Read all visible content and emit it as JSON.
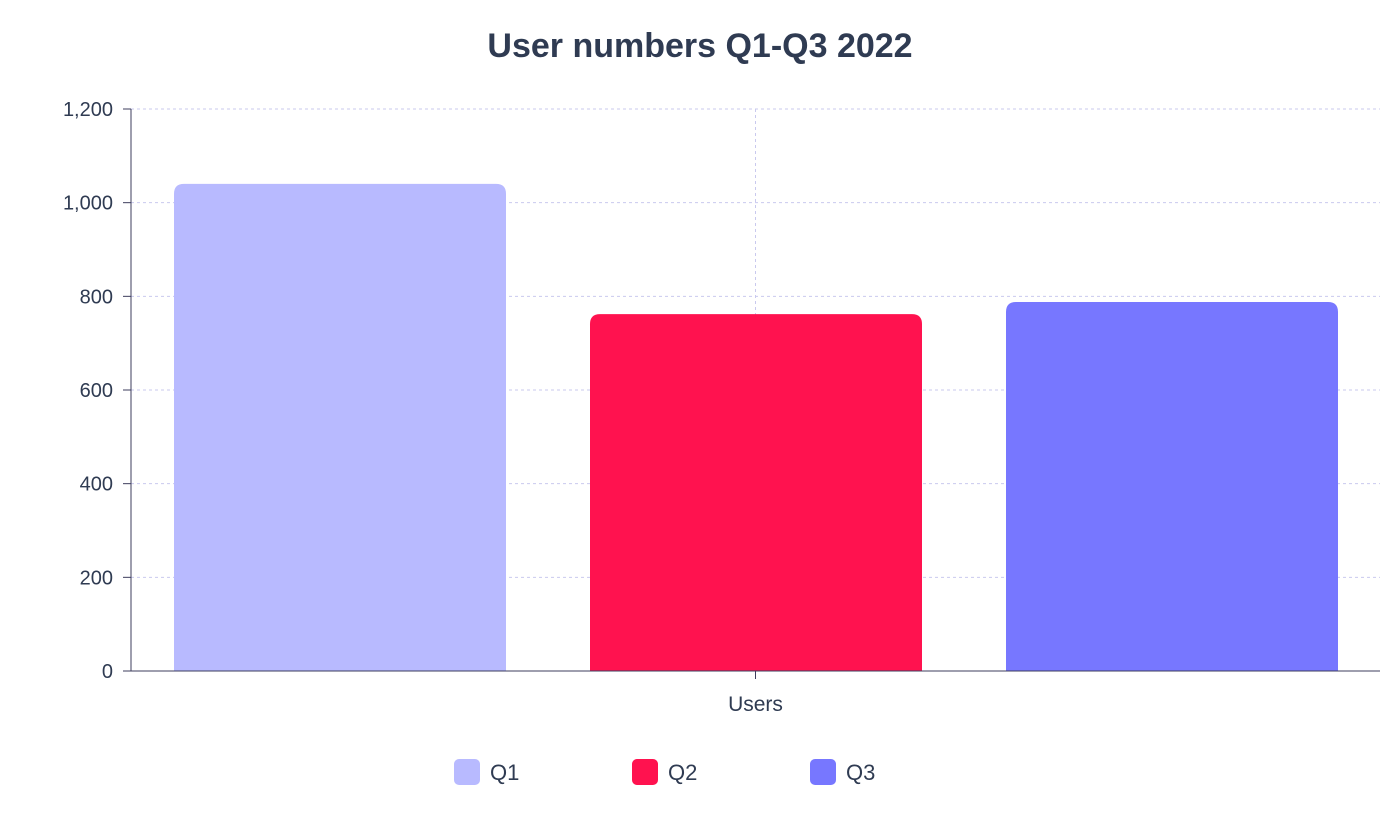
{
  "chart_data": {
    "type": "bar",
    "title": "User numbers Q1-Q3 2022",
    "categories": [
      "Users"
    ],
    "series": [
      {
        "name": "Q1",
        "values": [
          1040
        ],
        "color": "#b8baff"
      },
      {
        "name": "Q2",
        "values": [
          762
        ],
        "color": "#ff124f"
      },
      {
        "name": "Q3",
        "values": [
          788
        ],
        "color": "#7777ff"
      }
    ],
    "ylim": [
      0,
      1200
    ],
    "yticks": [
      0,
      200,
      400,
      600,
      800,
      1000,
      1200
    ],
    "ytick_labels": [
      "0",
      "200",
      "400",
      "600",
      "800",
      "1,000",
      "1,200"
    ],
    "grid": true,
    "legend_position": "bottom-center"
  }
}
